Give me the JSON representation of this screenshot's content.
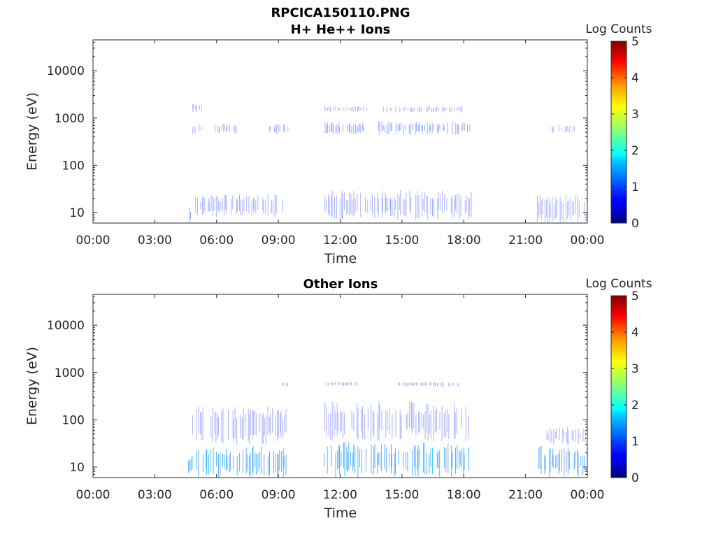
{
  "figure_title": "RPCICA150110.PNG",
  "colorbar": {
    "label": "Log Counts",
    "ticks": [
      "0",
      "1",
      "2",
      "3",
      "4",
      "5"
    ],
    "range": [
      0,
      5
    ],
    "colormap": "jet"
  },
  "chart_data": [
    {
      "type": "heatmap",
      "title": "H+ He++ Ions",
      "xlabel": "Time",
      "ylabel": "Energy (eV)",
      "x_ticks": [
        "00:00",
        "03:00",
        "06:00",
        "09:00",
        "12:00",
        "15:00",
        "18:00",
        "21:00",
        "00:00"
      ],
      "x_range_hours": [
        0,
        24
      ],
      "y_ticks": [
        "10",
        "100",
        "1000",
        "10000"
      ],
      "y_tick_values": [
        10,
        100,
        1000,
        10000
      ],
      "y_scale": "log",
      "y_range": [
        6,
        45000
      ],
      "clusters": [
        {
          "t_start": 4.6,
          "t_end": 4.75,
          "e_low": 6,
          "e_high": 13,
          "level": 0.5
        },
        {
          "t_start": 4.7,
          "t_end": 5.3,
          "e_low": 460,
          "e_high": 780,
          "level": 0.2
        },
        {
          "t_start": 4.7,
          "t_end": 5.3,
          "e_low": 1300,
          "e_high": 2100,
          "level": 0.1
        },
        {
          "t_start": 4.8,
          "t_end": 9.3,
          "e_low": 8,
          "e_high": 24,
          "level": 0.15
        },
        {
          "t_start": 5.9,
          "t_end": 7.0,
          "e_low": 480,
          "e_high": 760,
          "level": 0.1
        },
        {
          "t_start": 8.5,
          "t_end": 9.5,
          "e_low": 460,
          "e_high": 760,
          "level": 0.2
        },
        {
          "t_start": 11.2,
          "t_end": 18.4,
          "e_low": 7,
          "e_high": 30,
          "level": 0.15
        },
        {
          "t_start": 11.2,
          "t_end": 13.2,
          "e_low": 450,
          "e_high": 800,
          "level": 0.25
        },
        {
          "t_start": 11.2,
          "t_end": 13.3,
          "e_low": 1350,
          "e_high": 1800,
          "level": 0.15
        },
        {
          "t_start": 13.8,
          "t_end": 18.3,
          "e_low": 440,
          "e_high": 860,
          "level": 0.3
        },
        {
          "t_start": 14.0,
          "t_end": 18.0,
          "e_low": 1300,
          "e_high": 1800,
          "level": 0.1
        },
        {
          "t_start": 21.5,
          "t_end": 23.9,
          "e_low": 6,
          "e_high": 24,
          "level": 0.12
        },
        {
          "t_start": 22.1,
          "t_end": 23.4,
          "e_low": 480,
          "e_high": 720,
          "level": 0.08
        }
      ]
    },
    {
      "type": "heatmap",
      "title": "Other Ions",
      "xlabel": "Time",
      "ylabel": "Energy (eV)",
      "x_ticks": [
        "00:00",
        "03:00",
        "06:00",
        "09:00",
        "12:00",
        "15:00",
        "18:00",
        "21:00",
        "00:00"
      ],
      "x_range_hours": [
        0,
        24
      ],
      "y_ticks": [
        "10",
        "100",
        "1000",
        "10000"
      ],
      "y_tick_values": [
        10,
        100,
        1000,
        10000
      ],
      "y_scale": "log",
      "y_range": [
        6,
        45000
      ],
      "clusters": [
        {
          "t_start": 4.6,
          "t_end": 4.75,
          "e_low": 6,
          "e_high": 18,
          "level": 0.9
        },
        {
          "t_start": 4.75,
          "t_end": 9.4,
          "e_low": 6,
          "e_high": 28,
          "level": 0.7
        },
        {
          "t_start": 4.8,
          "t_end": 9.4,
          "e_low": 30,
          "e_high": 200,
          "level": 0.15
        },
        {
          "t_start": 9.0,
          "t_end": 9.5,
          "e_low": 500,
          "e_high": 620,
          "level": 0.1
        },
        {
          "t_start": 11.2,
          "t_end": 18.3,
          "e_low": 6,
          "e_high": 35,
          "level": 0.7
        },
        {
          "t_start": 11.2,
          "t_end": 18.3,
          "e_low": 35,
          "e_high": 250,
          "level": 0.15
        },
        {
          "t_start": 11.2,
          "t_end": 12.8,
          "e_low": 520,
          "e_high": 640,
          "level": 0.3
        },
        {
          "t_start": 14.8,
          "t_end": 17.8,
          "e_low": 500,
          "e_high": 640,
          "level": 0.2
        },
        {
          "t_start": 21.5,
          "t_end": 23.9,
          "e_low": 6,
          "e_high": 28,
          "level": 0.6
        },
        {
          "t_start": 22.0,
          "t_end": 23.9,
          "e_low": 30,
          "e_high": 70,
          "level": 0.12
        }
      ]
    }
  ]
}
